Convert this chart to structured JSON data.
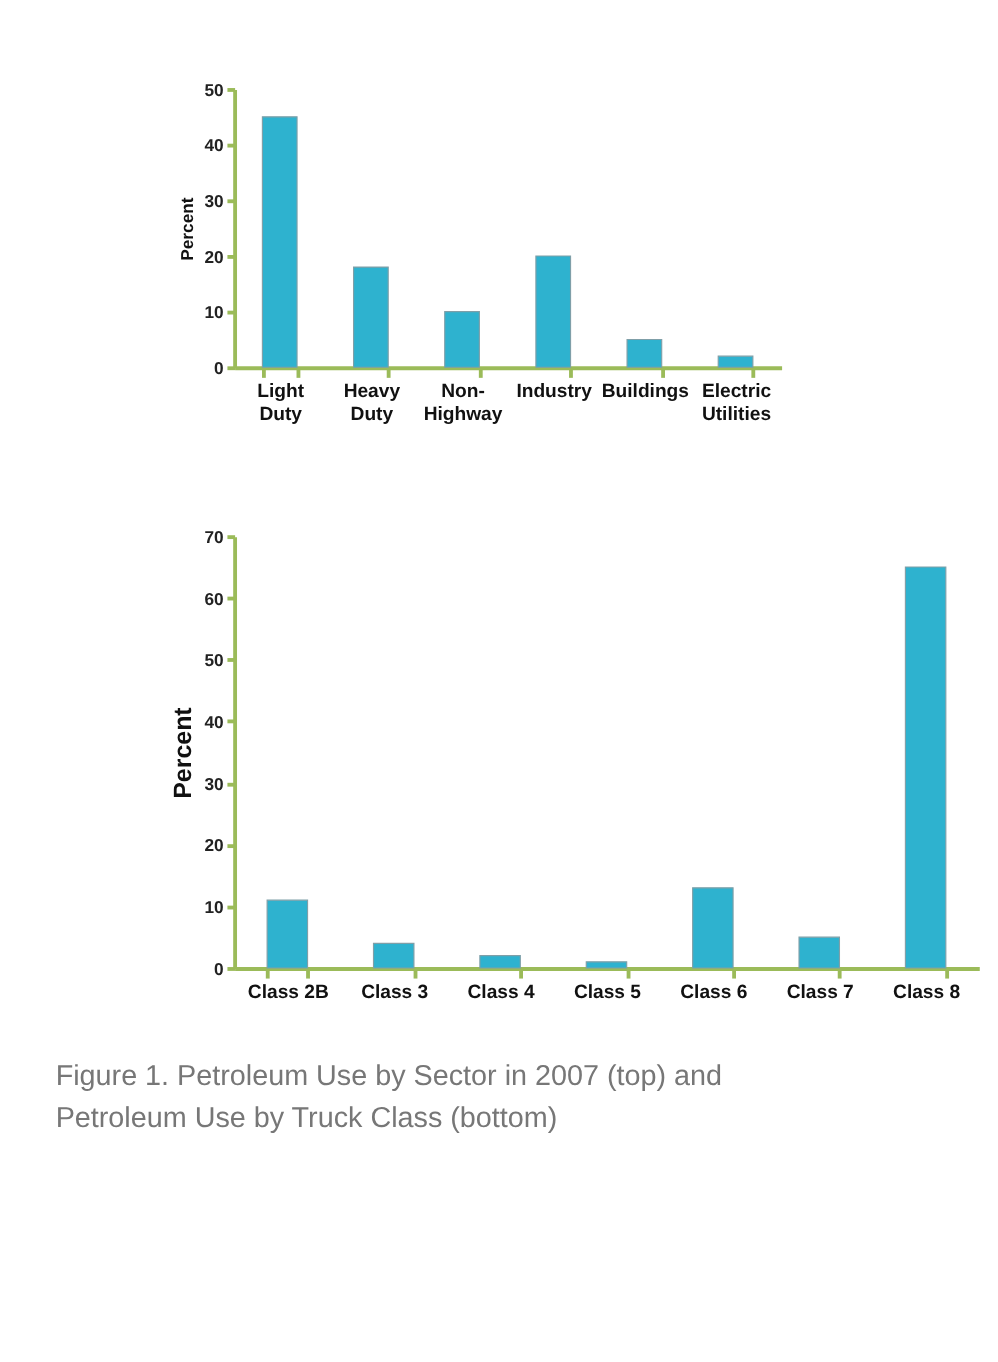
{
  "chart_data": [
    {
      "type": "bar",
      "ylabel": "Percent",
      "categories": [
        "Light\nDuty",
        "Heavy\nDuty",
        "Non-\nHighway",
        "Industry",
        "Buildings",
        "Electric\nUtilities"
      ],
      "values": [
        45,
        18,
        10,
        20,
        5,
        2
      ],
      "color": "#2eb2cf",
      "ylim": [
        0,
        50
      ],
      "yticks": [
        0,
        10,
        20,
        30,
        40,
        50
      ],
      "grid": false,
      "legend": false
    },
    {
      "type": "bar",
      "ylabel": "Percent",
      "categories": [
        "Class 2B",
        "Class 3",
        "Class 4",
        "Class 5",
        "Class 6",
        "Class 7",
        "Class 8"
      ],
      "values": [
        11,
        4,
        2,
        1,
        13,
        5,
        65
      ],
      "color": "#2eb2cf",
      "ylim": [
        0,
        70
      ],
      "yticks": [
        0,
        10,
        20,
        30,
        40,
        50,
        60,
        70
      ],
      "grid": false,
      "legend": false,
      "annotations": [
        "Figure 1. Petroleum Use by Sector in 2007 (top) and Petroleum Use by Truck Class (bottom)"
      ]
    }
  ]
}
